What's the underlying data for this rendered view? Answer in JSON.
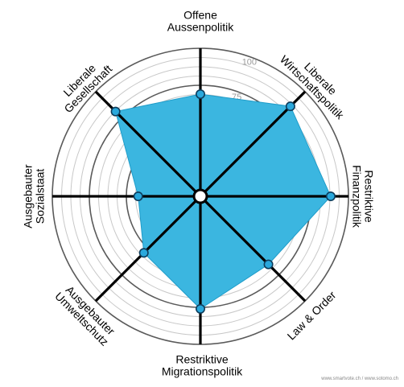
{
  "chart_data": {
    "type": "radar",
    "title": "",
    "rlim": [
      0,
      100
    ],
    "ticks": [
      25,
      50,
      75,
      100
    ],
    "axes": [
      {
        "label_lines": [
          "Offene",
          "Aussenpolitik"
        ]
      },
      {
        "label_lines": [
          "Liberale",
          "Wirtschaftspolitik"
        ]
      },
      {
        "label_lines": [
          "Restriktive",
          "Finanzpolitik"
        ]
      },
      {
        "label_lines": [
          "Law & Order"
        ]
      },
      {
        "label_lines": [
          "Restriktive",
          "Migrationspolitik"
        ]
      },
      {
        "label_lines": [
          "Ausgebauter",
          "Umweltschutz"
        ]
      },
      {
        "label_lines": [
          "Ausgebauter",
          "Sozialstaat"
        ]
      },
      {
        "label_lines": [
          "Liberale",
          "Gesellschaft"
        ]
      }
    ],
    "series": [
      {
        "values": [
          69,
          86,
          88,
          65,
          76,
          54,
          42,
          81
        ]
      }
    ],
    "colors": {
      "fill": "#3bb6e0",
      "stroke": "#1f9cc9",
      "point": "#2aa8dc",
      "point_stroke": "#0d3d5c",
      "axis": "#000000"
    }
  },
  "footer": "www.smartvote.ch / www.sotomo.ch"
}
